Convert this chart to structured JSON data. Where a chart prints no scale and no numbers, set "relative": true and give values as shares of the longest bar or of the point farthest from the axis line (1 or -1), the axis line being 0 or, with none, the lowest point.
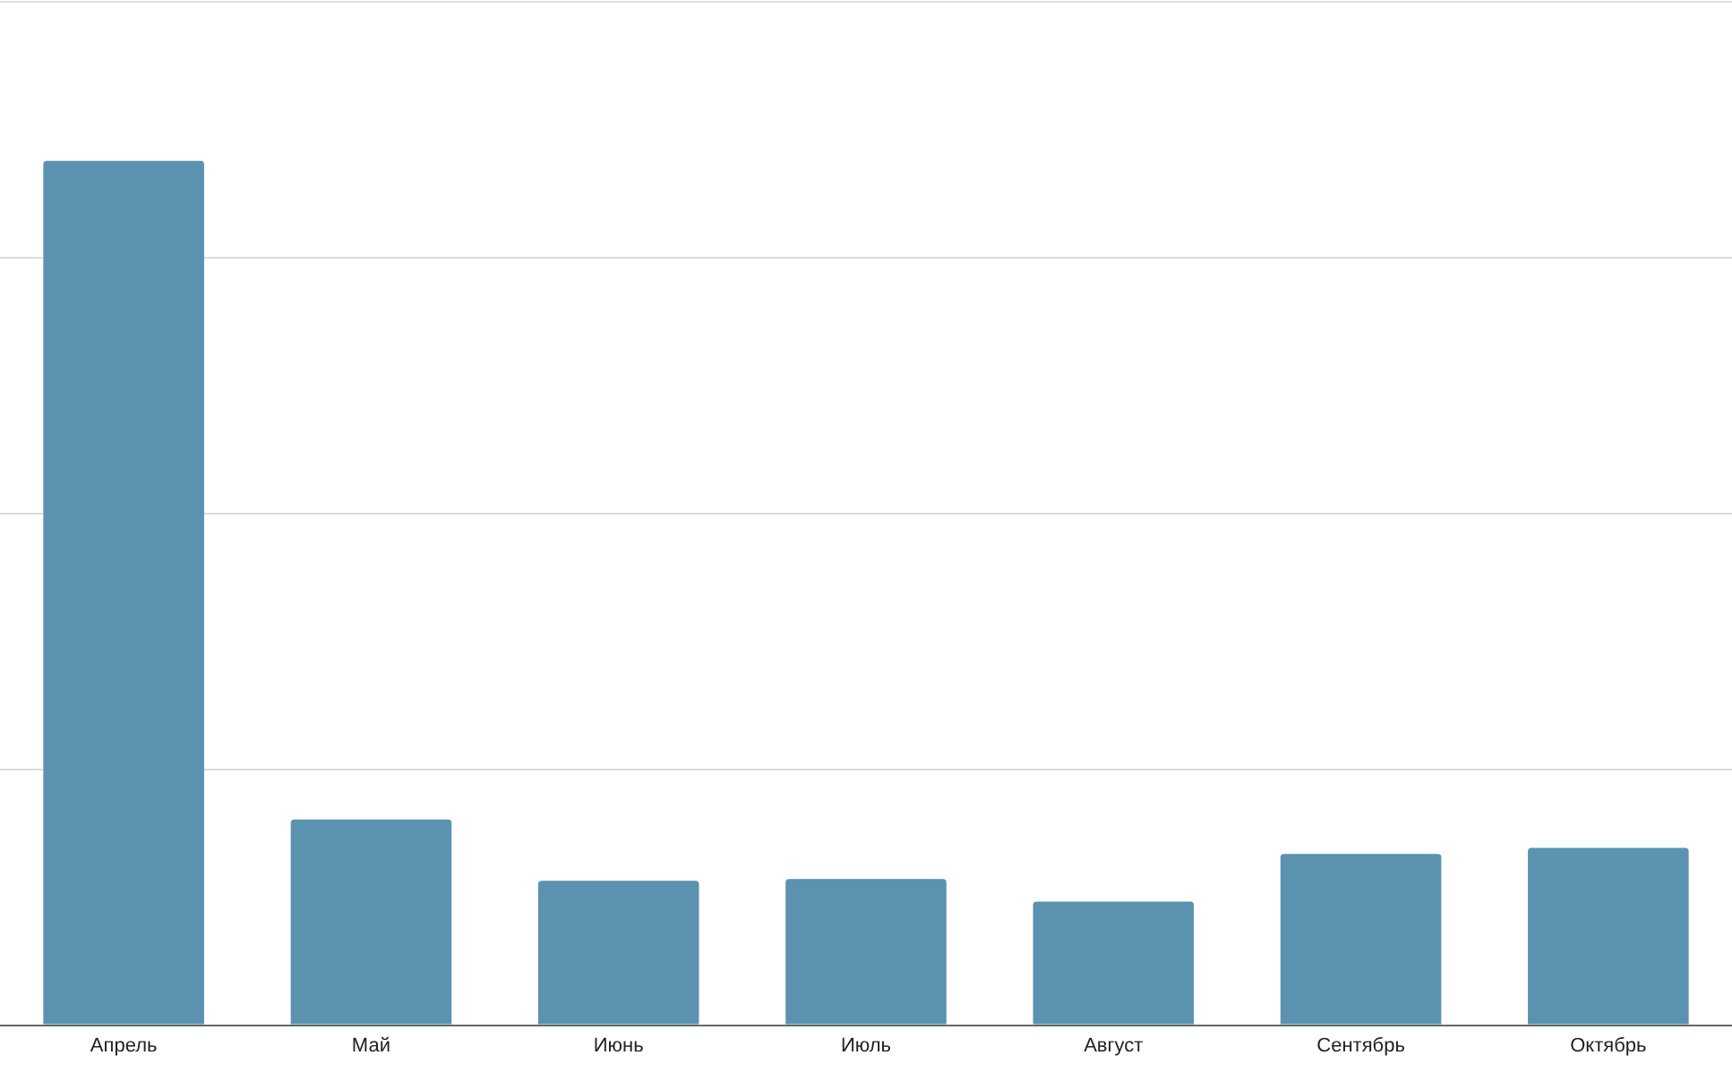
{
  "chart_data": {
    "type": "bar",
    "relative": true,
    "grid": "y",
    "categories": [
      "Апрель",
      "Май",
      "Июнь",
      "Июль",
      "Август",
      "Сентябрь",
      "Октябрь"
    ],
    "series": [
      {
        "color": "#5b92b0",
        "values": [
          1,
          0.238,
          0.167,
          0.169,
          0.143,
          0.198,
          0.205
        ]
      }
    ]
  }
}
